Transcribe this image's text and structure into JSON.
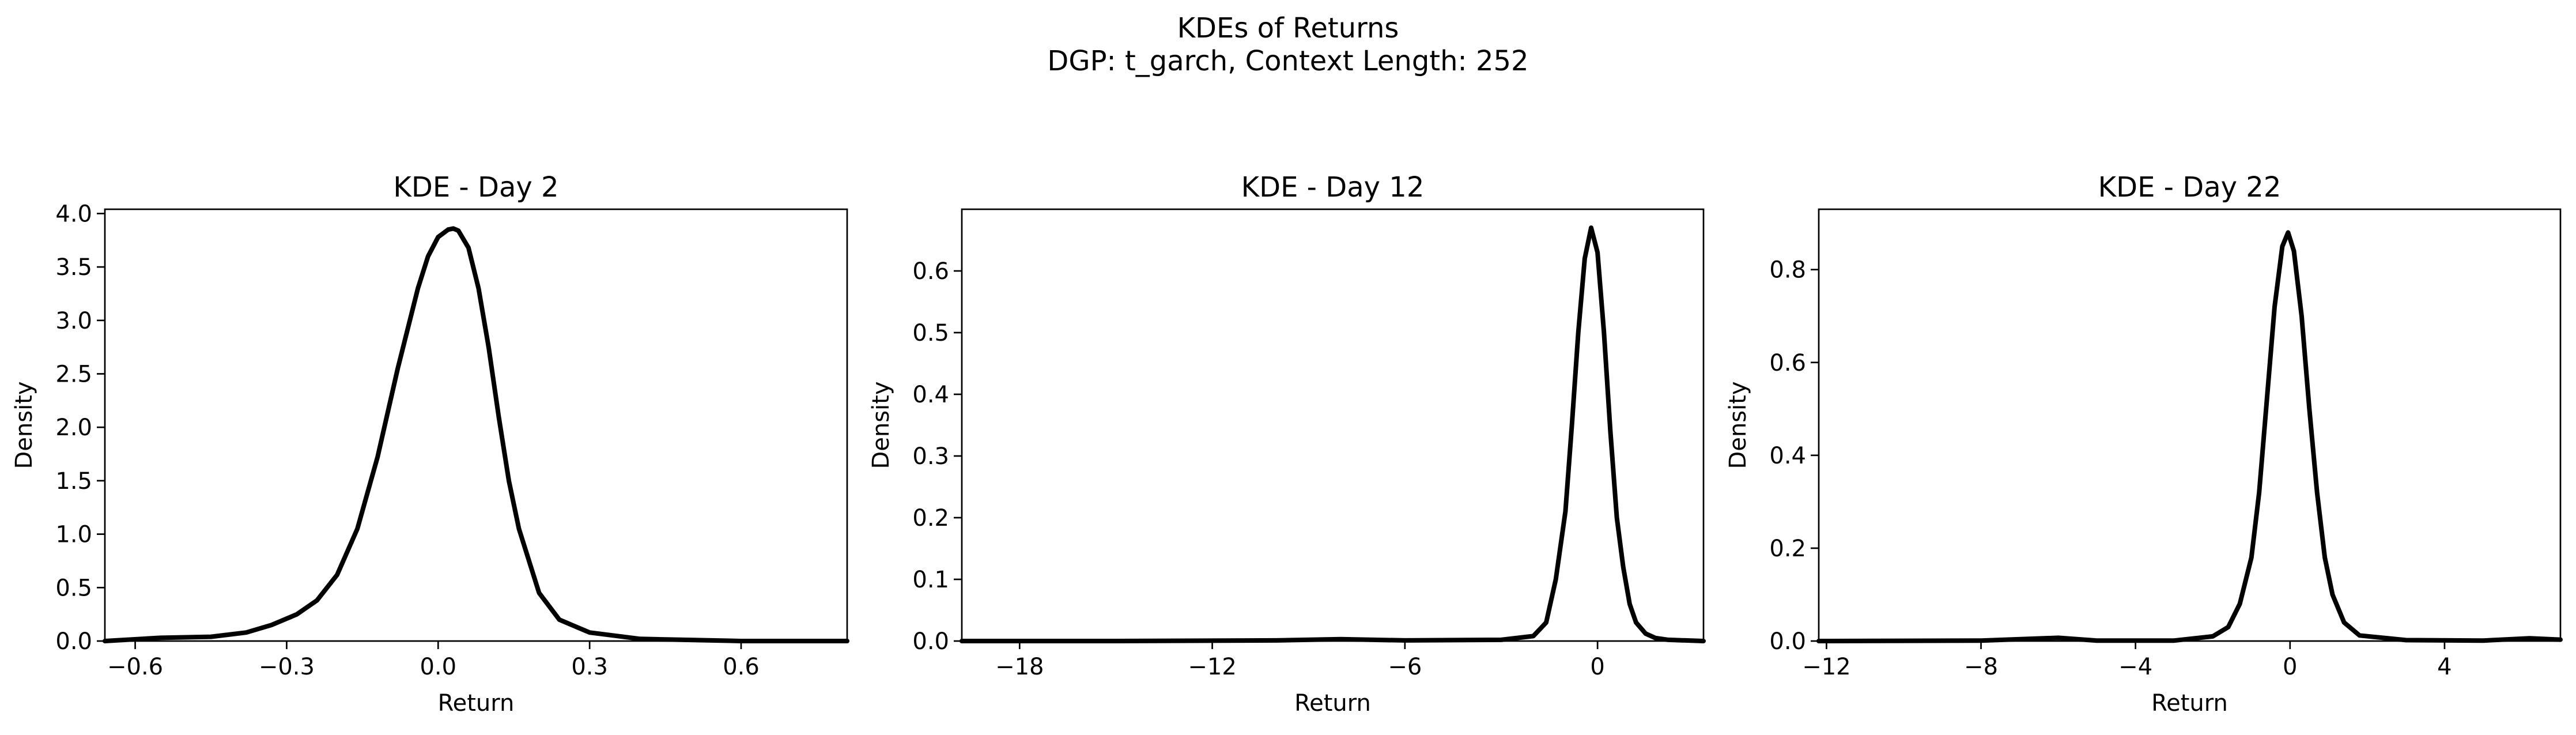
{
  "figure": {
    "title_line1": "KDEs of Returns",
    "title_line2": "DGP: t_garch, Context Length: 252"
  },
  "colors": {
    "line": "#000000",
    "frame": "#000000",
    "background": "#ffffff"
  },
  "chart_data": [
    {
      "type": "line",
      "title": "KDE - Day 2",
      "xlabel": "Return",
      "ylabel": "Density",
      "xlim": [
        -0.66,
        0.81
      ],
      "ylim": [
        0,
        4.04
      ],
      "xticks": [
        -0.6,
        -0.3,
        0.0,
        0.3,
        0.6
      ],
      "xtick_labels": [
        "−0.6",
        "−0.3",
        "0.0",
        "0.3",
        "0.6"
      ],
      "yticks": [
        0,
        0.5,
        1.0,
        1.5,
        2.0,
        2.5,
        3.0,
        3.5,
        4.0
      ],
      "ytick_labels": [
        "0.0",
        "0.5",
        "1.0",
        "1.5",
        "2.0",
        "2.5",
        "3.0",
        "3.5",
        "4.0"
      ],
      "grid": false,
      "series": [
        {
          "x": [
            -0.66,
            -0.55,
            -0.45,
            -0.38,
            -0.33,
            -0.28,
            -0.24,
            -0.2,
            -0.16,
            -0.12,
            -0.08,
            -0.04,
            -0.02,
            0.0,
            0.02,
            0.03,
            0.04,
            0.06,
            0.08,
            0.1,
            0.12,
            0.14,
            0.16,
            0.2,
            0.24,
            0.3,
            0.4,
            0.5,
            0.6,
            0.81
          ],
          "y": [
            0.0,
            0.03,
            0.04,
            0.08,
            0.15,
            0.25,
            0.38,
            0.62,
            1.05,
            1.72,
            2.55,
            3.3,
            3.6,
            3.78,
            3.85,
            3.86,
            3.84,
            3.68,
            3.3,
            2.75,
            2.1,
            1.5,
            1.05,
            0.45,
            0.2,
            0.08,
            0.02,
            0.01,
            0.0,
            0.0
          ]
        }
      ]
    },
    {
      "type": "line",
      "title": "KDE - Day 12",
      "xlabel": "Return",
      "ylabel": "Density",
      "xlim": [
        -19.8,
        3.3
      ],
      "ylim": [
        0,
        0.7
      ],
      "xticks": [
        -18,
        -12,
        -6,
        0
      ],
      "xtick_labels": [
        "−18",
        "−12",
        "−6",
        "0"
      ],
      "yticks": [
        0,
        0.1,
        0.2,
        0.3,
        0.4,
        0.5,
        0.6
      ],
      "ytick_labels": [
        "0.0",
        "0.1",
        "0.2",
        "0.3",
        "0.4",
        "0.5",
        "0.6"
      ],
      "grid": false,
      "series": [
        {
          "x": [
            -19.8,
            -15.0,
            -10.0,
            -8.0,
            -6.0,
            -3.0,
            -2.0,
            -1.6,
            -1.3,
            -1.0,
            -0.8,
            -0.6,
            -0.4,
            -0.2,
            0.0,
            0.2,
            0.4,
            0.6,
            0.8,
            1.0,
            1.2,
            1.5,
            1.8,
            2.2,
            3.3
          ],
          "y": [
            0.0,
            0.0,
            0.001,
            0.003,
            0.001,
            0.002,
            0.008,
            0.03,
            0.1,
            0.21,
            0.35,
            0.5,
            0.62,
            0.67,
            0.63,
            0.5,
            0.34,
            0.2,
            0.12,
            0.06,
            0.03,
            0.012,
            0.005,
            0.002,
            0.0
          ]
        }
      ]
    },
    {
      "type": "line",
      "title": "KDE - Day 22",
      "xlabel": "Return",
      "ylabel": "Density",
      "xlim": [
        -12.2,
        7.0
      ],
      "ylim": [
        0,
        0.93
      ],
      "xticks": [
        -12,
        -8,
        -4,
        0,
        4
      ],
      "xtick_labels": [
        "−12",
        "−8",
        "−4",
        "0",
        "4"
      ],
      "yticks": [
        0,
        0.2,
        0.4,
        0.6,
        0.8
      ],
      "ytick_labels": [
        "0.0",
        "0.2",
        "0.4",
        "0.6",
        "0.8"
      ],
      "grid": false,
      "series": [
        {
          "x": [
            -12.2,
            -8.0,
            -6.0,
            -5.0,
            -3.0,
            -2.0,
            -1.6,
            -1.3,
            -1.0,
            -0.8,
            -0.6,
            -0.4,
            -0.2,
            -0.05,
            0.1,
            0.3,
            0.5,
            0.7,
            0.9,
            1.1,
            1.4,
            1.8,
            3.0,
            5.0,
            6.2,
            7.0
          ],
          "y": [
            0.0,
            0.001,
            0.007,
            0.001,
            0.001,
            0.01,
            0.03,
            0.08,
            0.18,
            0.32,
            0.52,
            0.72,
            0.85,
            0.88,
            0.84,
            0.7,
            0.5,
            0.32,
            0.18,
            0.1,
            0.04,
            0.012,
            0.002,
            0.001,
            0.006,
            0.003
          ]
        }
      ]
    }
  ]
}
